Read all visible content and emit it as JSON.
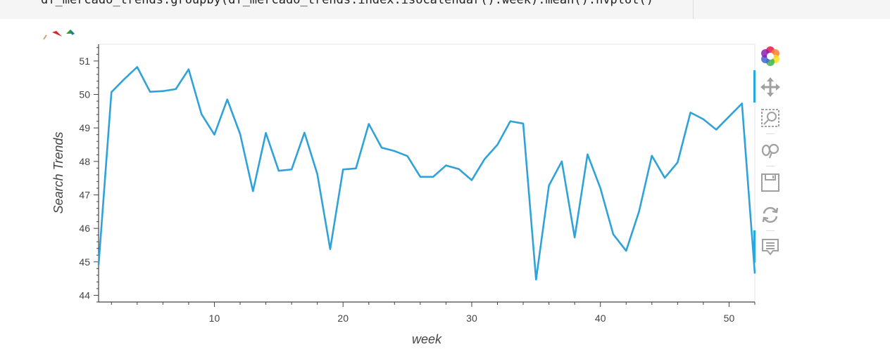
{
  "code_cell": {
    "text": "df_mercado_trends.groupby(df_mercado_trends.index.isocalendar().week).mean().hvplot()"
  },
  "toolbar": {
    "tools": [
      {
        "name": "bokeh-logo",
        "icon": "bokeh-logo-icon"
      },
      {
        "name": "pan",
        "icon": "move-icon",
        "active": true
      },
      {
        "name": "box-zoom",
        "icon": "box-zoom-icon"
      },
      {
        "name": "wheel-zoom",
        "icon": "wheel-zoom-icon",
        "active": true
      },
      {
        "name": "save",
        "icon": "save-icon"
      },
      {
        "name": "reset",
        "icon": "reset-icon"
      },
      {
        "name": "hover",
        "icon": "hover-icon"
      }
    ]
  },
  "colors": {
    "line": "#30a2da",
    "axis": "#444444",
    "tick_text": "#444444",
    "label_text": "#444444",
    "code_bg": "#f5f5f5",
    "tool_icon": "#a0a0a0",
    "tool_active": "#26aae1"
  },
  "chart_data": {
    "type": "line",
    "xlabel": "week",
    "ylabel": "Search Trends",
    "xlim": [
      1,
      52
    ],
    "ylim": [
      43.8,
      51.5
    ],
    "xticks": [
      10,
      20,
      30,
      40,
      50
    ],
    "yticks": [
      44,
      45,
      46,
      47,
      48,
      49,
      50,
      51
    ],
    "grid": false,
    "x": [
      1,
      2,
      3,
      4,
      5,
      6,
      7,
      8,
      9,
      10,
      11,
      12,
      13,
      14,
      15,
      16,
      17,
      18,
      19,
      20,
      21,
      22,
      23,
      24,
      25,
      26,
      27,
      28,
      29,
      30,
      31,
      32,
      33,
      34,
      35,
      36,
      37,
      38,
      39,
      40,
      41,
      42,
      43,
      44,
      45,
      46,
      47,
      48,
      49,
      50,
      51,
      52
    ],
    "values": [
      44.9,
      50.07,
      50.46,
      50.82,
      50.08,
      50.1,
      50.16,
      50.75,
      49.41,
      48.8,
      49.85,
      48.82,
      47.11,
      48.85,
      47.72,
      47.76,
      48.86,
      47.62,
      45.38,
      47.76,
      47.79,
      49.12,
      48.41,
      48.31,
      48.16,
      47.54,
      47.54,
      47.88,
      47.77,
      47.44,
      48.07,
      48.5,
      49.2,
      49.13,
      44.47,
      47.28,
      48.0,
      45.73,
      48.21,
      47.2,
      45.82,
      45.33,
      46.5,
      48.17,
      47.51,
      47.97,
      49.46,
      49.26,
      48.95,
      49.34,
      49.73,
      44.65
    ]
  }
}
